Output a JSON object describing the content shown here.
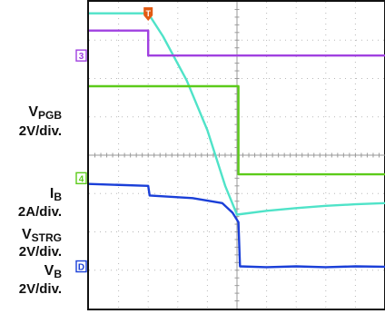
{
  "chart_data": {
    "type": "line",
    "title": "",
    "xlabel": "",
    "ylabel": "",
    "x_divisions": 10,
    "y_divisions": 8,
    "grid": true,
    "trigger_marker": "T",
    "trigger_color": "#e25a12",
    "channel_labels": [
      {
        "id": "vpgb",
        "main": "V",
        "sub": "PGB",
        "scale": "2V/div."
      },
      {
        "id": "ib",
        "main": "I",
        "sub": "B",
        "scale": "2A/div."
      },
      {
        "id": "vstrg",
        "main": "V",
        "sub": "STRG",
        "scale": "2V/div."
      },
      {
        "id": "vb",
        "main": "V",
        "sub": "B",
        "scale": "2V/div."
      }
    ],
    "channel_markers": [
      {
        "text": "3",
        "y_div": 6.6,
        "color": "#a040e0"
      },
      {
        "text": "4",
        "y_div": 3.4,
        "color": "#5ccb1a"
      },
      {
        "text": "D",
        "y_div": 1.1,
        "color": "#1a3fd8"
      }
    ],
    "series": [
      {
        "color": "#4fe3c8",
        "points": [
          [
            0,
            7.7
          ],
          [
            2.0,
            7.7
          ],
          [
            2.5,
            7.1
          ],
          [
            3.3,
            5.95
          ],
          [
            4.0,
            4.65
          ],
          [
            4.6,
            3.2
          ],
          [
            5.0,
            2.45
          ],
          [
            6.0,
            2.55
          ],
          [
            7.0,
            2.62
          ],
          [
            8.0,
            2.68
          ],
          [
            9.0,
            2.72
          ],
          [
            10,
            2.75
          ]
        ]
      },
      {
        "color": "#a040e0",
        "points": [
          [
            0,
            7.25
          ],
          [
            2.0,
            7.25
          ],
          [
            2.0,
            6.6
          ],
          [
            10,
            6.6
          ]
        ]
      },
      {
        "color": "#5ccb1a",
        "points": [
          [
            0,
            5.8
          ],
          [
            5.05,
            5.8
          ],
          [
            5.05,
            3.5
          ],
          [
            10,
            3.5
          ]
        ]
      },
      {
        "color": "#1a3fd8",
        "points": [
          [
            0,
            3.25
          ],
          [
            2.0,
            3.2
          ],
          [
            2.05,
            2.95
          ],
          [
            3.5,
            2.88
          ],
          [
            4.5,
            2.75
          ],
          [
            4.85,
            2.5
          ],
          [
            5.05,
            2.25
          ],
          [
            5.1,
            1.1
          ],
          [
            6.0,
            1.08
          ],
          [
            7.0,
            1.1
          ],
          [
            8.0,
            1.08
          ],
          [
            9.0,
            1.1
          ],
          [
            10,
            1.09
          ]
        ]
      }
    ]
  }
}
